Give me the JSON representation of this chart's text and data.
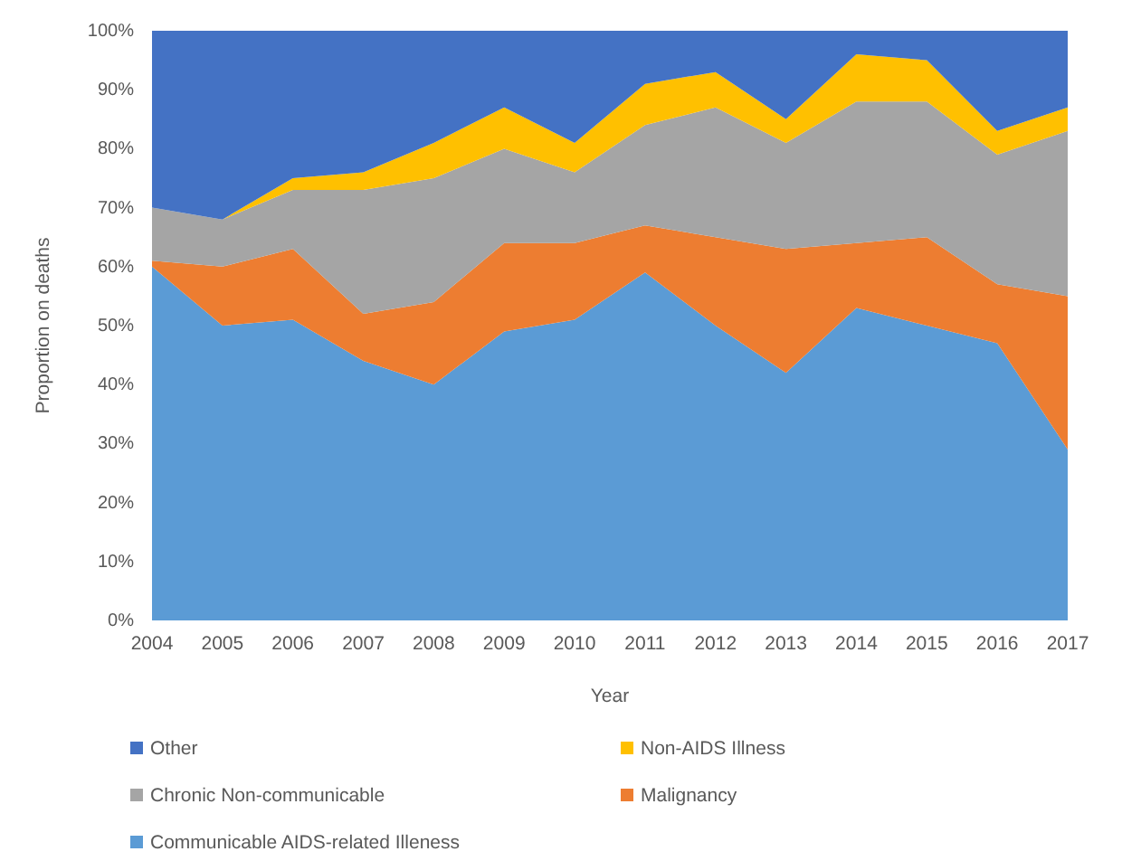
{
  "chart_data": {
    "type": "area",
    "stacked": true,
    "categories": [
      "2004",
      "2005",
      "2006",
      "2007",
      "2008",
      "2009",
      "2010",
      "2011",
      "2012",
      "2013",
      "2014",
      "2015",
      "2016",
      "2017"
    ],
    "series": [
      {
        "name": "Communicable AIDS-related Illeness",
        "color": "#5b9bd5",
        "values": [
          60,
          50,
          51,
          44,
          40,
          49,
          51,
          59,
          50,
          42,
          53,
          50,
          47,
          29
        ]
      },
      {
        "name": "Malignancy",
        "color": "#ed7d31",
        "values": [
          1,
          10,
          12,
          8,
          14,
          15,
          13,
          8,
          15,
          21,
          11,
          15,
          10,
          26
        ]
      },
      {
        "name": "Chronic Non-communicable",
        "color": "#a5a5a5",
        "values": [
          9,
          8,
          10,
          21,
          21,
          16,
          12,
          17,
          22,
          18,
          24,
          23,
          22,
          28
        ]
      },
      {
        "name": "Non-AIDS Illness",
        "color": "#ffc000",
        "values": [
          0,
          0,
          2,
          3,
          6,
          7,
          5,
          7,
          6,
          4,
          8,
          7,
          4,
          4
        ]
      },
      {
        "name": "Other",
        "color": "#4472c4",
        "values": [
          30,
          32,
          25,
          24,
          19,
          13,
          19,
          9,
          7,
          15,
          4,
          5,
          17,
          13
        ]
      }
    ],
    "ylim": [
      0,
      100
    ],
    "yticks": [
      {
        "value": 0,
        "label": "0%"
      },
      {
        "value": 10,
        "label": "10%"
      },
      {
        "value": 20,
        "label": "20%"
      },
      {
        "value": 30,
        "label": "30%"
      },
      {
        "value": 40,
        "label": "40%"
      },
      {
        "value": 50,
        "label": "50%"
      },
      {
        "value": 60,
        "label": "60%"
      },
      {
        "value": 70,
        "label": "70%"
      },
      {
        "value": 80,
        "label": "80%"
      },
      {
        "value": 90,
        "label": "90%"
      },
      {
        "value": 100,
        "label": "100%"
      }
    ],
    "xlabel": "Year",
    "ylabel": "Proportion on deaths",
    "legend": "bottom"
  }
}
